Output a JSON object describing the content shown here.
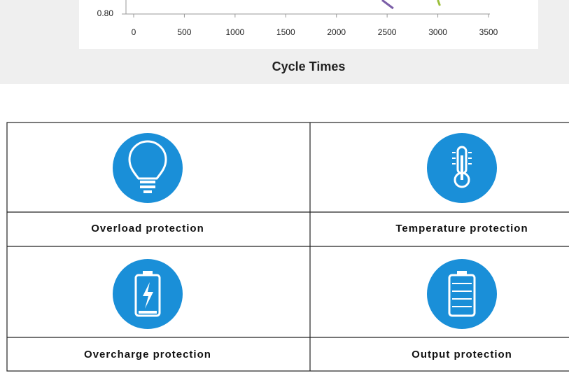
{
  "chart_data": {
    "type": "line",
    "xlabel": "Cycle Times",
    "xlim": [
      0,
      3500
    ],
    "xticks": [
      0,
      500,
      1000,
      1500,
      2000,
      2500,
      3000,
      3500
    ],
    "ylim": [
      0.8,
      0.86
    ],
    "yticks": [
      {
        "value": 0.8,
        "label": "0.80"
      }
    ],
    "series": [
      {
        "color": "#7b5ea7",
        "x": [
          2450,
          2560
        ],
        "values": [
          0.81,
          0.804
        ]
      },
      {
        "color": "#9cbf3b",
        "x": [
          3000,
          3020
        ],
        "values": [
          0.81,
          0.806
        ]
      }
    ]
  },
  "features": [
    {
      "label": "Overload protection"
    },
    {
      "label": "Temperature protection"
    },
    {
      "label": "Overcharge protection"
    },
    {
      "label": "Output protection"
    }
  ]
}
